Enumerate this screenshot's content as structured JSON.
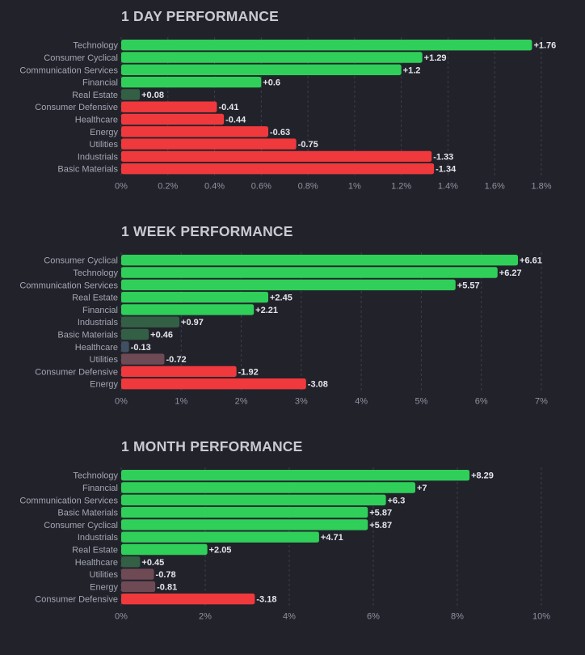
{
  "theme": {
    "background": "#22222b",
    "grid": "#3b3e4a",
    "positive_strong": "#2fcf59",
    "positive_weak": "#335f45",
    "neutral": "#405060",
    "negative_weak": "#6e4a55",
    "negative_strong": "#f0393c"
  },
  "chart_data": [
    {
      "type": "bar",
      "orientation": "horizontal",
      "title": "1 DAY PERFORMANCE",
      "categories": [
        "Technology",
        "Consumer Cyclical",
        "Communication Services",
        "Financial",
        "Real Estate",
        "Consumer Defensive",
        "Healthcare",
        "Energy",
        "Utilities",
        "Industrials",
        "Basic Materials"
      ],
      "values": [
        1.76,
        1.29,
        1.2,
        0.6,
        0.08,
        -0.41,
        -0.44,
        -0.63,
        -0.75,
        -1.33,
        -1.34
      ],
      "value_labels": [
        "+1.76",
        "+1.29",
        "+1.2",
        "+0.6",
        "+0.08",
        "-0.41",
        "-0.44",
        "-0.63",
        "-0.75",
        "-1.33",
        "-1.34"
      ],
      "bar_length": "absolute value",
      "xlim": [
        0,
        1.8
      ],
      "xticks": [
        "0%",
        "0.2%",
        "0.4%",
        "0.6%",
        "0.8%",
        "1%",
        "1.2%",
        "1.4%",
        "1.6%",
        "1.8%"
      ],
      "grid": true
    },
    {
      "type": "bar",
      "orientation": "horizontal",
      "title": "1 WEEK PERFORMANCE",
      "categories": [
        "Consumer Cyclical",
        "Technology",
        "Communication Services",
        "Real Estate",
        "Financial",
        "Industrials",
        "Basic Materials",
        "Healthcare",
        "Utilities",
        "Consumer Defensive",
        "Energy"
      ],
      "values": [
        6.61,
        6.27,
        5.57,
        2.45,
        2.21,
        0.97,
        0.46,
        -0.13,
        -0.72,
        -1.92,
        -3.08
      ],
      "value_labels": [
        "+6.61",
        "+6.27",
        "+5.57",
        "+2.45",
        "+2.21",
        "+0.97",
        "+0.46",
        "-0.13",
        "-0.72",
        "-1.92",
        "-3.08"
      ],
      "bar_length": "absolute value",
      "xlim": [
        0,
        7
      ],
      "xticks": [
        "0%",
        "1%",
        "2%",
        "3%",
        "4%",
        "5%",
        "6%",
        "7%"
      ],
      "grid": true
    },
    {
      "type": "bar",
      "orientation": "horizontal",
      "title": "1 MONTH PERFORMANCE",
      "categories": [
        "Technology",
        "Financial",
        "Communication Services",
        "Basic Materials",
        "Consumer Cyclical",
        "Industrials",
        "Real Estate",
        "Healthcare",
        "Utilities",
        "Energy",
        "Consumer Defensive"
      ],
      "values": [
        8.29,
        7,
        6.3,
        5.87,
        5.87,
        4.71,
        2.05,
        0.45,
        -0.78,
        -0.81,
        -3.18
      ],
      "value_labels": [
        "+8.29",
        "+7",
        "+6.3",
        "+5.87",
        "+5.87",
        "+4.71",
        "+2.05",
        "+0.45",
        "-0.78",
        "-0.81",
        "-3.18"
      ],
      "bar_length": "absolute value",
      "xlim": [
        0,
        10
      ],
      "xticks": [
        "0%",
        "2%",
        "4%",
        "6%",
        "8%",
        "10%"
      ],
      "grid": true
    }
  ]
}
